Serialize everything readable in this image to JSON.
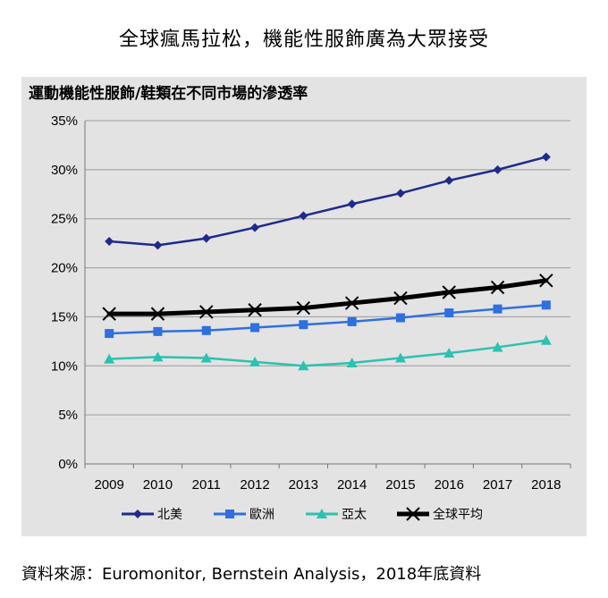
{
  "page": {
    "title": "全球瘋馬拉松，機能性服飾廣為大眾接受",
    "source": "資料來源：Euromonitor, Bernstein Analysis，2018年底資料"
  },
  "chart_data": {
    "type": "line",
    "title": "運動機能性服飾/鞋類在不同市場的滲透率",
    "xlabel": "",
    "ylabel": "",
    "categories": [
      "2009",
      "2010",
      "2011",
      "2012",
      "2013",
      "2014",
      "2015",
      "2016",
      "2017",
      "2018"
    ],
    "ylim": [
      0,
      35
    ],
    "yticks": [
      0,
      5,
      10,
      15,
      20,
      25,
      30,
      35
    ],
    "ytick_labels": [
      "0%",
      "5%",
      "10%",
      "15%",
      "20%",
      "25%",
      "30%",
      "35%"
    ],
    "grid": "horizontal",
    "legend_position": "bottom",
    "series": [
      {
        "name": "北美",
        "color": "#1f2a8c",
        "marker": "diamond",
        "values": [
          22.7,
          22.3,
          23.0,
          24.1,
          25.3,
          26.5,
          27.6,
          28.9,
          30.0,
          31.3
        ]
      },
      {
        "name": "歐洲",
        "color": "#2f6fe0",
        "marker": "square",
        "values": [
          13.3,
          13.5,
          13.6,
          13.9,
          14.2,
          14.5,
          14.9,
          15.4,
          15.8,
          16.2
        ]
      },
      {
        "name": "亞太",
        "color": "#2cc2b0",
        "marker": "triangle",
        "values": [
          10.7,
          10.9,
          10.8,
          10.4,
          10.0,
          10.3,
          10.8,
          11.3,
          11.9,
          12.6
        ]
      },
      {
        "name": "全球平均",
        "color": "#000000",
        "marker": "x",
        "values": [
          15.3,
          15.3,
          15.5,
          15.7,
          15.9,
          16.4,
          16.9,
          17.5,
          18.0,
          18.7
        ]
      }
    ]
  }
}
